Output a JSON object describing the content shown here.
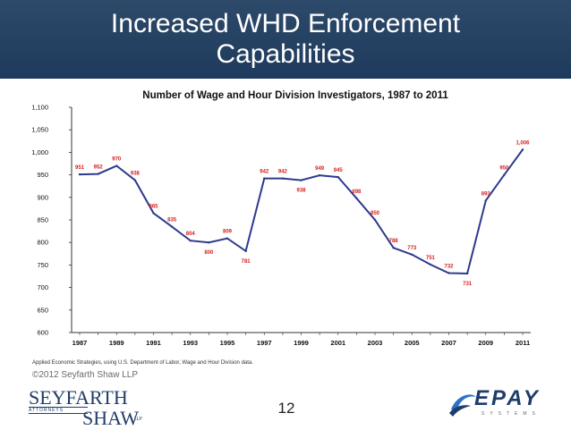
{
  "slide": {
    "title_line1": "Increased WHD Enforcement",
    "title_line2": "Capabilities",
    "source": "Applied Economic Strategies, using U.S. Department of Labor, Wage and Hour Division data.",
    "copyright": "©2012 Seyfarth Shaw LLP",
    "page_number": "12",
    "colors": {
      "title_bar": "#1e3a5c",
      "series": "#2e3a8c",
      "data_label": "#d62020"
    }
  },
  "logos": {
    "seyfarth_top": "SEYFARTH",
    "seyfarth_sub": "ATTORNEYS",
    "seyfarth_bottom": "SHAW",
    "seyfarth_llp": "LLP",
    "epay_word": "EPAY",
    "epay_sub": "SYSTEMS"
  },
  "chart_data": {
    "type": "line",
    "title": "Number of Wage and Hour Division Investigators, 1987 to 2011",
    "xlabel": "",
    "ylabel": "",
    "x": [
      1987,
      1988,
      1989,
      1990,
      1991,
      1992,
      1993,
      1994,
      1995,
      1996,
      1997,
      1998,
      1999,
      2000,
      2001,
      2002,
      2003,
      2004,
      2005,
      2006,
      2007,
      2008,
      2009,
      2010,
      2011
    ],
    "series": [
      {
        "values": [
          951,
          952,
          970,
          938,
          865,
          835,
          804,
          800,
          809,
          781,
          942,
          942,
          938,
          949,
          945,
          898,
          850,
          788,
          773,
          751,
          732,
          731,
          893,
          950,
          1006
        ]
      }
    ],
    "data_labels": [
      "951",
      "952",
      "970",
      "938",
      "865",
      "835",
      "804",
      "800",
      "809",
      "781",
      "942",
      "942",
      "938",
      "949",
      "945",
      "898",
      "850",
      "788",
      "773",
      "751",
      "732",
      "731",
      "893",
      "950",
      "1,006"
    ],
    "x_ticks": [
      "1987",
      "1989",
      "1991",
      "1993",
      "1995",
      "1997",
      "1999",
      "2001",
      "2003",
      "2005",
      "2007",
      "2009",
      "2011"
    ],
    "y_ticks": [
      "600",
      "650",
      "700",
      "750",
      "800",
      "850",
      "900",
      "950",
      "1,000",
      "1,050",
      "1,100"
    ],
    "ylim": [
      600,
      1100
    ],
    "grid": false,
    "legend": "none"
  }
}
